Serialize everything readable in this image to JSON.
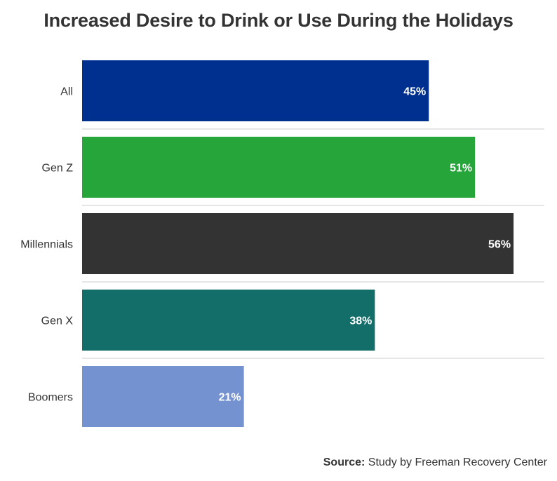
{
  "chart_data": {
    "type": "bar",
    "orientation": "horizontal",
    "title": "Increased Desire to Drink or Use During the Holidays",
    "categories": [
      "All",
      "Gen Z",
      "Millennials",
      "Gen X",
      "Boomers"
    ],
    "values": [
      45,
      51,
      56,
      38,
      21
    ],
    "data_labels": [
      "45%",
      "51%",
      "56%",
      "38%",
      "21%"
    ],
    "colors": [
      "#00308f",
      "#26a53a",
      "#333333",
      "#136e6a",
      "#7592d0"
    ],
    "unit": "%",
    "xlim": [
      0,
      60
    ],
    "grid": false,
    "legend": "none"
  },
  "source": {
    "label": "Source:",
    "text": "Study by Freeman Recovery Center"
  }
}
